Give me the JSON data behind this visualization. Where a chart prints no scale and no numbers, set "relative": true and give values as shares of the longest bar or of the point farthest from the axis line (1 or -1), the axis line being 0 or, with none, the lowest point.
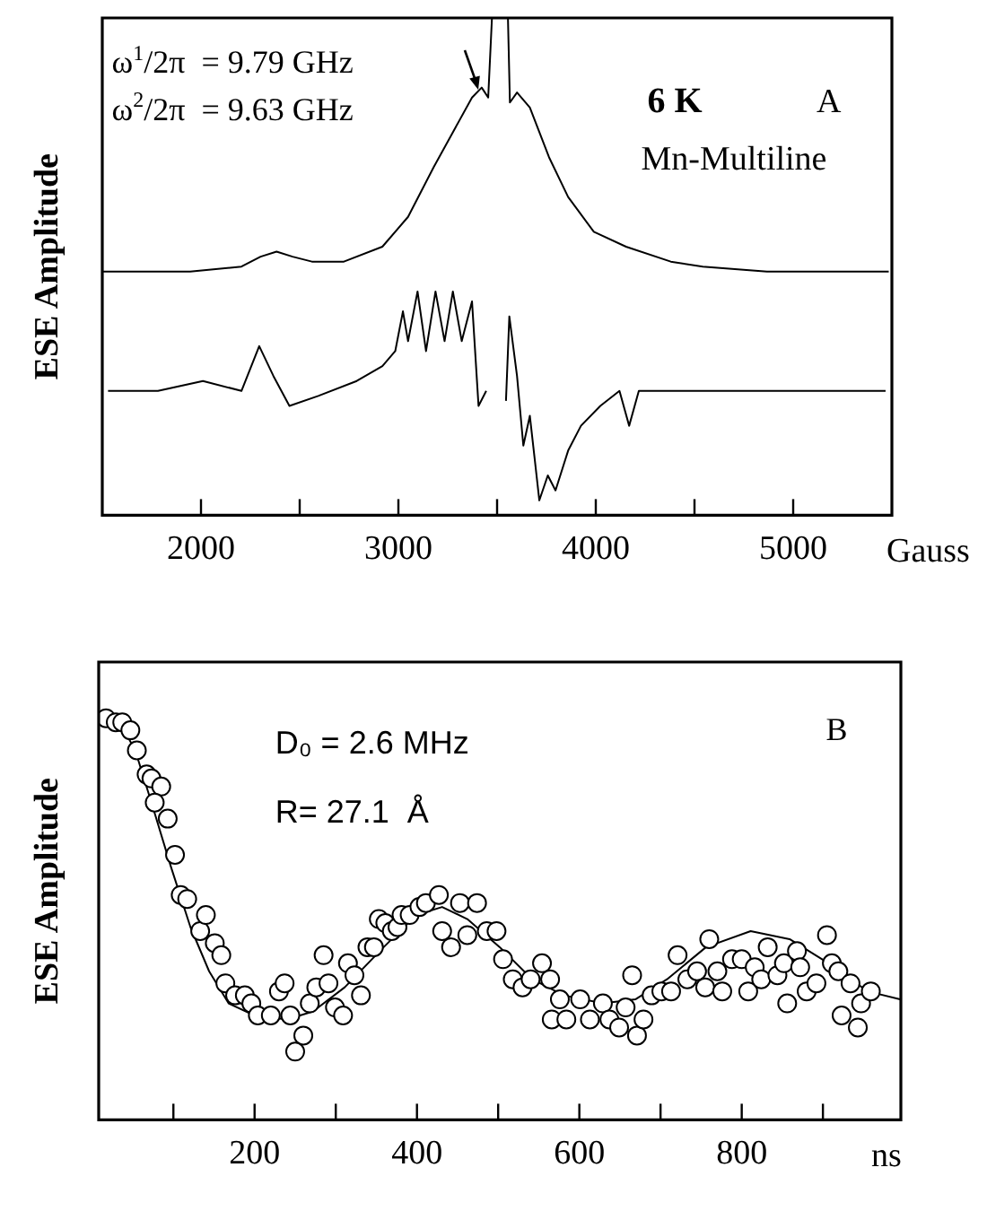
{
  "chart_data": [
    {
      "type": "line",
      "relative": true,
      "xlabel": "Gauss",
      "ylabel": "ESE Amplitude",
      "xlim": [
        1500,
        5500
      ],
      "xticks": [
        2000,
        {
          "value": 2500,
          "label": null
        },
        3000,
        {
          "value": 3500,
          "label": null
        },
        4000,
        {
          "value": 4500,
          "label": null
        },
        5000
      ],
      "grid": false,
      "legend": false,
      "marker": "none",
      "line_style": "solid",
      "annotations": [
        "ω$^{1}$/2π  = 9.79 GHz",
        "ω$^{2}$/2π  = 9.63 GHz",
        "6 K",
        "A",
        "Mn-Multiline"
      ],
      "series": [
        {
          "color": "#000000",
          "x": [
            1500,
            1945,
            2205,
            2302,
            2383,
            2464,
            2562,
            2724,
            2919,
            3049,
            3179,
            3276,
            3373,
            3422,
            3455,
            3474,
            3555,
            3565,
            3601,
            3666,
            3763,
            3860,
            3990,
            4153,
            4380,
            4542,
            4867,
            5484
          ],
          "values": [
            0.49,
            0.49,
            0.5,
            0.52,
            0.53,
            0.52,
            0.51,
            0.51,
            0.54,
            0.6,
            0.7,
            0.77,
            0.84,
            0.86,
            0.84,
            1.0,
            1.0,
            0.83,
            0.85,
            0.82,
            0.72,
            0.64,
            0.57,
            0.54,
            0.51,
            0.5,
            0.49,
            0.49
          ]
        },
        {
          "color": "#000000",
          "x": [
            1529,
            1782,
            2010,
            2205,
            2295,
            2367,
            2448,
            2594,
            2789,
            2919,
            2984,
            3023,
            3049,
            3097,
            3140,
            3188,
            3234,
            3276,
            3321,
            3373,
            3406,
            3445,
            3500,
            3545,
            3562,
            3601,
            3633,
            3666,
            3714,
            3757,
            3796,
            3860,
            3925,
            4023,
            4120,
            4169,
            4218,
            4380,
            4542,
            4867,
            5192,
            5468
          ],
          "values": [
            0.25,
            0.25,
            0.27,
            0.25,
            0.34,
            0.28,
            0.22,
            0.24,
            0.27,
            0.3,
            0.33,
            0.41,
            0.35,
            0.45,
            0.33,
            0.45,
            0.35,
            0.45,
            0.35,
            0.43,
            0.22,
            0.25,
            null,
            0.23,
            0.4,
            0.28,
            0.14,
            0.2,
            0.03,
            0.08,
            0.05,
            0.13,
            0.18,
            0.22,
            0.25,
            0.18,
            0.25,
            0.25,
            0.25,
            0.25,
            0.25,
            0.25
          ]
        }
      ]
    },
    {
      "type": "scatter",
      "relative": true,
      "xlabel": "ns",
      "ylabel": "ESE Amplitude",
      "xlim": [
        8,
        996
      ],
      "xticks": [
        {
          "value": 100,
          "label": null
        },
        200,
        {
          "value": 300,
          "label": null
        },
        400,
        {
          "value": 500,
          "label": null
        },
        600,
        {
          "value": 700,
          "label": null
        },
        800,
        {
          "value": 900,
          "label": null
        }
      ],
      "grid": false,
      "legend": false,
      "annotations": [
        "D₀ = 2.6 MHz",
        "R= 27.1  Å",
        "B"
      ],
      "series": [
        {
          "type": "scatter",
          "marker": "circle",
          "color": "#000000",
          "x": [
            17,
            29,
            37,
            47,
            55,
            67,
            73,
            85,
            77,
            93,
            102,
            109,
            117,
            133,
            140,
            151,
            159,
            164,
            176,
            188,
            196,
            204,
            220,
            230,
            237,
            244,
            260,
            250,
            268,
            276,
            285,
            291,
            299,
            309,
            315,
            323,
            331,
            339,
            347,
            353,
            361,
            369,
            376,
            381,
            391,
            403,
            411,
            427,
            431,
            442,
            453,
            462,
            474,
            486,
            498,
            506,
            518,
            530,
            540,
            554,
            564,
            566,
            576,
            584,
            601,
            613,
            629,
            637,
            649,
            657,
            665,
            671,
            679,
            689,
            701,
            713,
            721,
            733,
            745,
            755,
            760,
            770,
            776,
            788,
            800,
            808,
            816,
            824,
            832,
            844,
            852,
            856,
            868,
            872,
            880,
            892,
            905,
            911,
            919,
            923,
            934,
            943,
            947,
            959
          ],
          "values": [
            1.0,
            0.99,
            0.99,
            0.97,
            0.92,
            0.86,
            0.85,
            0.83,
            0.79,
            0.75,
            0.66,
            0.56,
            0.55,
            0.47,
            0.51,
            0.44,
            0.41,
            0.34,
            0.31,
            0.31,
            0.29,
            0.26,
            0.26,
            0.32,
            0.34,
            0.26,
            0.21,
            0.17,
            0.29,
            0.33,
            0.41,
            0.34,
            0.28,
            0.26,
            0.39,
            0.36,
            0.31,
            0.43,
            0.43,
            0.5,
            0.49,
            0.47,
            0.48,
            0.51,
            0.51,
            0.53,
            0.54,
            0.56,
            0.47,
            0.43,
            0.54,
            0.46,
            0.54,
            0.47,
            0.47,
            0.4,
            0.35,
            0.33,
            0.35,
            0.39,
            0.35,
            0.25,
            0.3,
            0.25,
            0.3,
            0.25,
            0.29,
            0.25,
            0.23,
            0.28,
            0.36,
            0.21,
            0.25,
            0.31,
            0.32,
            0.32,
            0.41,
            0.35,
            0.37,
            0.33,
            0.45,
            0.37,
            0.32,
            0.4,
            0.4,
            0.32,
            0.38,
            0.35,
            0.43,
            0.36,
            0.39,
            0.29,
            0.42,
            0.38,
            0.32,
            0.34,
            0.46,
            0.39,
            0.37,
            0.26,
            0.34,
            0.23,
            0.29,
            0.32
          ]
        },
        {
          "type": "line",
          "marker": "none",
          "line_style": "solid",
          "color": "#000000",
          "x": [
            8,
            34,
            53,
            73,
            97,
            121,
            144,
            168,
            200,
            240,
            272,
            311,
            359,
            399,
            431,
            462,
            502,
            542,
            581,
            629,
            669,
            708,
            756,
            811,
            859,
            907,
            955,
            995
          ],
          "values": [
            1.0,
            0.99,
            0.92,
            0.79,
            0.63,
            0.48,
            0.37,
            0.29,
            0.26,
            0.25,
            0.27,
            0.33,
            0.43,
            0.51,
            0.53,
            0.5,
            0.43,
            0.35,
            0.31,
            0.29,
            0.3,
            0.35,
            0.43,
            0.47,
            0.45,
            0.39,
            0.32,
            0.3
          ]
        }
      ]
    }
  ]
}
